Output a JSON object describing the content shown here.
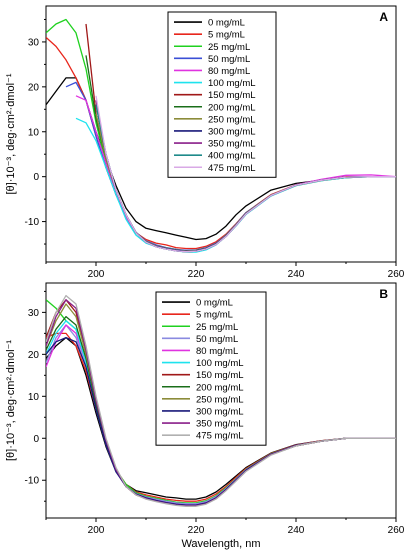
{
  "chart_data": [
    {
      "type": "line",
      "panel_label": "A",
      "xlabel": "",
      "ylabel": "[θ]·10⁻³, deg·cm²·dmol⁻¹",
      "xlim": [
        190,
        260
      ],
      "ylim": [
        -19,
        38
      ],
      "xticks": [
        200,
        220,
        240,
        260
      ],
      "yticks": [
        -10,
        0,
        10,
        20,
        30
      ],
      "legend_position": "top-center",
      "x": [
        190,
        192,
        194,
        196,
        198,
        200,
        202,
        204,
        206,
        208,
        210,
        212,
        214,
        216,
        218,
        220,
        222,
        224,
        226,
        228,
        230,
        235,
        240,
        245,
        250,
        255,
        260
      ],
      "series": [
        {
          "name": "0 mg/mL",
          "color": "#000000",
          "start": 190,
          "values": [
            16,
            19,
            22,
            22,
            17,
            10,
            4,
            -2,
            -7,
            -10,
            -11.5,
            -12,
            -12.5,
            -13,
            -13.5,
            -14,
            -13.8,
            -12.8,
            -11,
            -8.5,
            -6.5,
            -3,
            -1.5,
            -0.8,
            -0.2,
            0,
            0
          ]
        },
        {
          "name": "5 mg/mL",
          "color": "#e8261c",
          "start": 190,
          "values": [
            31,
            29,
            26,
            22,
            17,
            9,
            2,
            -4,
            -9,
            -12.5,
            -14,
            -14.8,
            -15.2,
            -15.8,
            -16,
            -16,
            -15.5,
            -14.5,
            -12.8,
            -10.5,
            -8,
            -4,
            -1.8,
            -0.8,
            0,
            0,
            0
          ]
        },
        {
          "name": "25 mg/mL",
          "color": "#1fd11f",
          "start": 190,
          "values": [
            32,
            34,
            35,
            32,
            24,
            12,
            3,
            -4,
            -9,
            -12.5,
            -14.5,
            -15.3,
            -15.8,
            -16.2,
            -16.5,
            -16.5,
            -16,
            -15,
            -13,
            -10.8,
            -8.2,
            -4.2,
            -2,
            -0.9,
            -0.2,
            0,
            0
          ]
        },
        {
          "name": "50 mg/mL",
          "color": "#3b4fd6",
          "start": 194,
          "values": [
            null,
            null,
            20,
            21,
            17,
            9,
            2,
            -4,
            -9,
            -12.5,
            -14.3,
            -15.2,
            -15.8,
            -16.2,
            -16.4,
            -16.3,
            -15.8,
            -14.8,
            -13,
            -10.6,
            -8,
            -4.1,
            -1.9,
            -0.8,
            -0.1,
            0,
            0
          ]
        },
        {
          "name": "80 mg/mL",
          "color": "#e033e0",
          "start": 195,
          "values": [
            null,
            null,
            null,
            18,
            17,
            10,
            3,
            -3.5,
            -9,
            -12.5,
            -14.5,
            -15.4,
            -16,
            -16.5,
            -16.7,
            -16.5,
            -16,
            -15,
            -13.2,
            -10.8,
            -8.2,
            -4.2,
            -1.8,
            -0.6,
            0.3,
            0.4,
            0
          ]
        },
        {
          "name": "100 mg/mL",
          "color": "#1ee3ee",
          "start": 195,
          "values": [
            null,
            null,
            null,
            13,
            12,
            8,
            2,
            -4,
            -9.5,
            -13,
            -14.8,
            -15.6,
            -16.1,
            -16.5,
            -16.8,
            -16.8,
            -16.3,
            -15.2,
            -13.3,
            -11,
            -8.4,
            -4.3,
            -2,
            -0.9,
            -0.2,
            0,
            0
          ]
        },
        {
          "name": "150 mg/mL",
          "color": "#a01818",
          "start": 197,
          "values": [
            null,
            null,
            null,
            null,
            34,
            14,
            4,
            -3,
            -8.5,
            -12.5,
            -14.5,
            -15.5,
            -16,
            -16.4,
            -16.6,
            -16.5,
            -16,
            -15,
            -13.2,
            -10.8,
            -8.2,
            -4.2,
            -1.9,
            -0.8,
            -0.1,
            0,
            0
          ]
        },
        {
          "name": "200 mg/mL",
          "color": "#1a6e1a",
          "start": 197,
          "values": [
            null,
            null,
            null,
            null,
            27,
            13,
            4,
            -3,
            -8.5,
            -12.5,
            -14.6,
            -15.6,
            -16.1,
            -16.5,
            -16.7,
            -16.6,
            -16.1,
            -15.1,
            -13.3,
            -10.9,
            -8.3,
            -4.2,
            -1.9,
            -0.8,
            -0.1,
            0,
            0
          ]
        },
        {
          "name": "250 mg/mL",
          "color": "#8c8c3a",
          "start": 198,
          "values": [
            null,
            null,
            null,
            null,
            null,
            14,
            4,
            -3,
            -8.5,
            -12.4,
            -14.4,
            -15.4,
            -15.9,
            -16.3,
            -16.5,
            -16.4,
            -15.9,
            -14.9,
            -13.1,
            -10.7,
            -8.1,
            -4.1,
            -1.9,
            -0.8,
            -0.1,
            0,
            0
          ]
        },
        {
          "name": "300 mg/mL",
          "color": "#1a1a7a",
          "start": 198,
          "values": [
            null,
            null,
            null,
            null,
            null,
            16,
            5,
            -3,
            -8.5,
            -12.4,
            -14.5,
            -15.5,
            -16,
            -16.4,
            -16.6,
            -16.5,
            -16,
            -15,
            -13.2,
            -10.8,
            -8.2,
            -4.2,
            -1.9,
            -0.8,
            -0.1,
            0,
            0
          ]
        },
        {
          "name": "350 mg/mL",
          "color": "#8a1f8a",
          "start": 198,
          "values": [
            null,
            null,
            null,
            null,
            null,
            17,
            5,
            -3,
            -8.5,
            -12.5,
            -14.6,
            -15.6,
            -16.1,
            -16.5,
            -16.7,
            -16.6,
            -16.1,
            -15.1,
            -13.3,
            -10.9,
            -8.3,
            -4.2,
            -1.9,
            -0.8,
            -0.1,
            0,
            0
          ]
        },
        {
          "name": "400 mg/mL",
          "color": "#1f8a8a",
          "start": 198,
          "values": [
            null,
            null,
            null,
            null,
            null,
            16,
            5,
            -3,
            -8.5,
            -12.5,
            -14.6,
            -15.6,
            -16.1,
            -16.5,
            -16.7,
            -16.6,
            -16.1,
            -15.1,
            -13.3,
            -10.9,
            -8.3,
            -4.2,
            -1.9,
            -0.8,
            -0.1,
            0,
            0
          ]
        },
        {
          "name": "475 mg/mL",
          "color": "#d9a9e6",
          "start": 198,
          "values": [
            null,
            null,
            null,
            null,
            null,
            18,
            5,
            -3,
            -8.5,
            -12.5,
            -14.6,
            -15.6,
            -16.1,
            -16.5,
            -16.7,
            -16.6,
            -16.1,
            -15.1,
            -13.3,
            -10.9,
            -8.3,
            -4.2,
            -1.9,
            -0.8,
            -0.1,
            0,
            0
          ]
        }
      ]
    },
    {
      "type": "line",
      "panel_label": "B",
      "xlabel": "Wavelength, nm",
      "ylabel": "[θ]·10⁻³, deg·cm²·dmol⁻¹",
      "xlim": [
        190,
        260
      ],
      "ylim": [
        -19,
        37
      ],
      "xticks": [
        200,
        220,
        240,
        260
      ],
      "yticks": [
        -10,
        0,
        10,
        20,
        30
      ],
      "legend_position": "top-center",
      "x": [
        190,
        192,
        194,
        196,
        198,
        200,
        202,
        204,
        206,
        208,
        210,
        212,
        214,
        216,
        218,
        220,
        222,
        224,
        226,
        228,
        230,
        235,
        240,
        245,
        250,
        255,
        260
      ],
      "series": [
        {
          "name": "0 mg/mL",
          "color": "#000000",
          "start": 190,
          "values": [
            19,
            22,
            24,
            22,
            15,
            6,
            -2,
            -8,
            -11,
            -12.5,
            -13,
            -13.5,
            -14,
            -14.2,
            -14.5,
            -14.5,
            -14,
            -12.8,
            -11,
            -9,
            -7,
            -3.5,
            -1.5,
            -0.6,
            0,
            0,
            0
          ]
        },
        {
          "name": "5 mg/mL",
          "color": "#e8261c",
          "start": 190,
          "values": [
            24,
            25,
            25,
            22,
            16,
            7,
            -1,
            -7.5,
            -11,
            -12.8,
            -13.5,
            -14,
            -14.5,
            -14.8,
            -15,
            -15,
            -14.5,
            -13.3,
            -11.5,
            -9.3,
            -7.2,
            -3.6,
            -1.6,
            -0.6,
            0,
            0,
            0
          ]
        },
        {
          "name": "25 mg/mL",
          "color": "#1fd11f",
          "start": 190,
          "values": [
            33,
            31,
            28,
            26,
            18,
            8,
            -1,
            -7.5,
            -11,
            -13,
            -13.8,
            -14.3,
            -14.8,
            -15.2,
            -15.4,
            -15.4,
            -14.9,
            -13.7,
            -11.8,
            -9.6,
            -7.4,
            -3.7,
            -1.7,
            -0.7,
            0,
            0,
            0
          ]
        },
        {
          "name": "50 mg/mL",
          "color": "#8a8ae0",
          "start": 190,
          "values": [
            18,
            24,
            27,
            24,
            17,
            7,
            -1.5,
            -8,
            -11.5,
            -13.2,
            -14,
            -14.5,
            -15,
            -15.4,
            -15.6,
            -15.6,
            -15.1,
            -13.9,
            -12,
            -9.7,
            -7.5,
            -3.8,
            -1.7,
            -0.7,
            0,
            0,
            0
          ]
        },
        {
          "name": "80 mg/mL",
          "color": "#e033e0",
          "start": 190,
          "values": [
            17,
            23,
            27,
            25,
            18,
            8,
            -1,
            -7.5,
            -11.5,
            -13.3,
            -14.2,
            -14.8,
            -15.3,
            -15.7,
            -15.9,
            -15.9,
            -15.4,
            -14.2,
            -12.2,
            -9.9,
            -7.6,
            -3.8,
            -1.7,
            -0.7,
            0,
            0,
            0
          ]
        },
        {
          "name": "100 mg/mL",
          "color": "#1ee3ee",
          "start": 190,
          "values": [
            20,
            25,
            28,
            26,
            18,
            8,
            -1,
            -7.5,
            -11.5,
            -13.4,
            -14.3,
            -14.9,
            -15.4,
            -15.8,
            -16,
            -16,
            -15.5,
            -14.3,
            -12.3,
            -10,
            -7.7,
            -3.9,
            -1.8,
            -0.7,
            0,
            0,
            0
          ]
        },
        {
          "name": "150 mg/mL",
          "color": "#a01818",
          "start": 190,
          "values": [
            24,
            30,
            33,
            30,
            20,
            9,
            -0.5,
            -7.5,
            -11.5,
            -13.5,
            -14.4,
            -15,
            -15.5,
            -15.9,
            -16.1,
            -16.1,
            -15.6,
            -14.4,
            -12.4,
            -10.1,
            -7.8,
            -3.9,
            -1.8,
            -0.7,
            0,
            0,
            0
          ]
        },
        {
          "name": "200 mg/mL",
          "color": "#1a6e1a",
          "start": 190,
          "values": [
            21,
            26,
            29,
            27,
            19,
            8,
            -1,
            -7.5,
            -11.5,
            -13.4,
            -14.3,
            -14.9,
            -15.4,
            -15.8,
            -16,
            -16,
            -15.5,
            -14.3,
            -12.3,
            -10,
            -7.7,
            -3.9,
            -1.8,
            -0.7,
            0,
            0,
            0
          ]
        },
        {
          "name": "250 mg/mL",
          "color": "#8c8c3a",
          "start": 190,
          "values": [
            22,
            28,
            32,
            29,
            20,
            9,
            -0.5,
            -7.5,
            -11.5,
            -13.4,
            -14.3,
            -14.9,
            -15.4,
            -15.8,
            -16,
            -16,
            -15.5,
            -14.3,
            -12.3,
            -10,
            -7.7,
            -3.9,
            -1.8,
            -0.7,
            0,
            0,
            0
          ]
        },
        {
          "name": "300 mg/mL",
          "color": "#1a1a7a",
          "start": 190,
          "values": [
            20,
            23,
            24,
            23,
            17,
            7,
            -1.5,
            -8,
            -11.5,
            -13.3,
            -14.2,
            -14.8,
            -15.3,
            -15.7,
            -15.9,
            -15.9,
            -15.4,
            -14.2,
            -12.2,
            -9.9,
            -7.6,
            -3.8,
            -1.7,
            -0.7,
            0,
            0,
            0
          ]
        },
        {
          "name": "350 mg/mL",
          "color": "#8a1f8a",
          "start": 190,
          "values": [
            22,
            29,
            33,
            31,
            21,
            9,
            -0.5,
            -7.5,
            -11.5,
            -13.5,
            -14.4,
            -15,
            -15.5,
            -15.9,
            -16.1,
            -16.1,
            -15.6,
            -14.4,
            -12.4,
            -10.1,
            -7.8,
            -3.9,
            -1.8,
            -0.7,
            0,
            0,
            0
          ]
        },
        {
          "name": "475 mg/mL",
          "color": "#b0b0b0",
          "start": 190,
          "values": [
            23,
            30,
            34,
            32,
            22,
            10,
            0,
            -7,
            -11.5,
            -13.5,
            -14.5,
            -15.1,
            -15.6,
            -16,
            -16.2,
            -16.2,
            -15.7,
            -14.5,
            -12.5,
            -10.2,
            -7.9,
            -4,
            -1.8,
            -0.7,
            0,
            0,
            0
          ]
        }
      ]
    }
  ]
}
